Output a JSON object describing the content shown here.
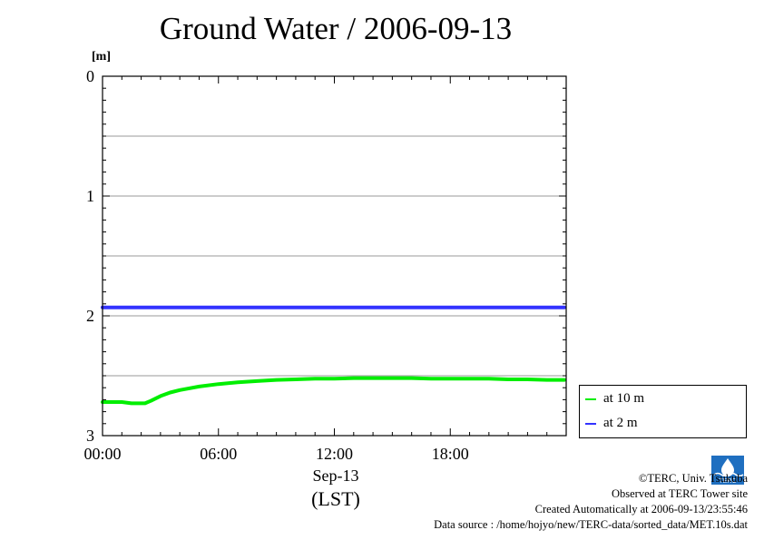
{
  "title": "Ground Water / 2006-09-13",
  "unit_label": "[m]",
  "x_date_label": "Sep-13",
  "x_tz_label": "(LST)",
  "credits": {
    "copyright": "©TERC, Univ. Tsukuba",
    "observed": "Observed at TERC Tower site",
    "created": "Created Automatically at 2006-09-13/23:55:46",
    "source": "Data source : /home/hojyo/new/TERC-data/sorted_data/MET.10s.dat"
  },
  "logo_text": "TERC",
  "colors": {
    "at_10m": "#00ee00",
    "at_2m": "#3333ff",
    "grid": "#999999",
    "axis": "#000000"
  },
  "chart_data": {
    "type": "line",
    "title": "Ground Water / 2006-09-13",
    "xlabel": "Sep-13 (LST)",
    "ylabel": "[m]",
    "x_unit": "hour",
    "xlim": [
      0,
      24
    ],
    "ylim": [
      0,
      3
    ],
    "y_inverted": true,
    "x_ticks": [
      0,
      6,
      12,
      18
    ],
    "x_tick_labels": [
      "00:00",
      "06:00",
      "12:00",
      "18:00"
    ],
    "y_ticks": [
      0,
      1,
      2,
      3
    ],
    "y_tick_labels": [
      "0",
      "1",
      "2",
      "3"
    ],
    "gridlines_y": [
      0.5,
      1,
      1.5,
      2,
      2.5
    ],
    "legend_position": "right-bottom, outside plot",
    "series": [
      {
        "name": "at 10 m",
        "color": "#00ee00",
        "x": [
          0,
          0.5,
          1,
          1.5,
          2,
          2.2,
          2.5,
          3,
          3.5,
          4,
          5,
          6,
          7,
          8,
          9,
          10,
          11,
          12,
          13,
          14,
          15,
          16,
          17,
          18,
          19,
          20,
          21,
          22,
          23,
          23.9
        ],
        "values": [
          2.72,
          2.72,
          2.72,
          2.73,
          2.73,
          2.73,
          2.71,
          2.67,
          2.64,
          2.62,
          2.59,
          2.57,
          2.555,
          2.545,
          2.535,
          2.53,
          2.525,
          2.525,
          2.52,
          2.52,
          2.52,
          2.52,
          2.525,
          2.525,
          2.525,
          2.525,
          2.53,
          2.53,
          2.535,
          2.535
        ]
      },
      {
        "name": "at 2 m",
        "color": "#3333ff",
        "x": [
          0,
          6,
          12,
          18,
          23.9
        ],
        "values": [
          1.93,
          1.93,
          1.93,
          1.93,
          1.93
        ]
      }
    ]
  }
}
